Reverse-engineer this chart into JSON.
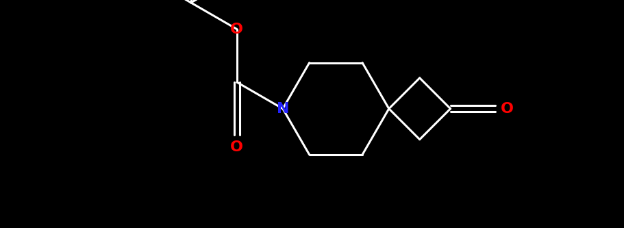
{
  "bg_color": "#000000",
  "bond_color": "#ffffff",
  "N_color": "#2222ff",
  "O_color": "#ff0000",
  "lw": 2.2,
  "font_size": 16,
  "fig_width": 9.11,
  "fig_height": 3.33,
  "dpi": 100,
  "xlim": [
    -1.0,
    10.5
  ],
  "ylim": [
    -0.5,
    3.8
  ]
}
